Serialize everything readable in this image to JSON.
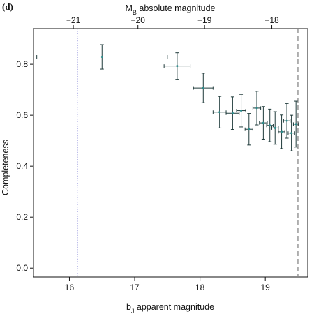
{
  "chart_data": {
    "type": "scatter",
    "panel_label": "(d)",
    "xlabel_base": "b",
    "xlabel_sub": "J",
    "xlabel_rest": " apparent magnitude",
    "ylabel": "Completeness",
    "top_label_base": "M",
    "top_label_sub": "B",
    "top_label_rest": " absolute magnitude",
    "xlim": [
      15.45,
      19.65
    ],
    "ylim": [
      -0.035,
      0.94
    ],
    "x_ticks": [
      16,
      17,
      18,
      19
    ],
    "x_tick_labels": [
      "16",
      "17",
      "18",
      "19"
    ],
    "y_ticks": [
      0.0,
      0.2,
      0.4,
      0.6,
      0.8
    ],
    "y_tick_labels": [
      "0.0",
      "0.2",
      "0.4",
      "0.6",
      "0.8"
    ],
    "top_ticks": [
      -21,
      -20,
      -19,
      -18
    ],
    "top_tick_labels": [
      "−21",
      "−20",
      "−19",
      "−18"
    ],
    "top_tick_positions_bj": [
      16.06,
      17.05,
      18.07,
      19.1
    ],
    "vlines": [
      {
        "x": 16.12,
        "style": "dotted",
        "color": "#3b3bbf"
      },
      {
        "x": 19.5,
        "style": "dashed",
        "color": "#888888"
      }
    ],
    "grid": false,
    "points": [
      {
        "x": 16.5,
        "y": 0.829,
        "xerr": 1.0,
        "yerr": 0.048
      },
      {
        "x": 17.65,
        "y": 0.793,
        "xerr": 0.2,
        "yerr": 0.052
      },
      {
        "x": 18.05,
        "y": 0.707,
        "xerr": 0.15,
        "yerr": 0.058
      },
      {
        "x": 18.3,
        "y": 0.612,
        "xerr": 0.1,
        "yerr": 0.062
      },
      {
        "x": 18.5,
        "y": 0.608,
        "xerr": 0.1,
        "yerr": 0.064
      },
      {
        "x": 18.63,
        "y": 0.618,
        "xerr": 0.07,
        "yerr": 0.064
      },
      {
        "x": 18.75,
        "y": 0.545,
        "xerr": 0.06,
        "yerr": 0.062
      },
      {
        "x": 18.87,
        "y": 0.628,
        "xerr": 0.06,
        "yerr": 0.066
      },
      {
        "x": 18.97,
        "y": 0.57,
        "xerr": 0.06,
        "yerr": 0.064
      },
      {
        "x": 19.07,
        "y": 0.56,
        "xerr": 0.05,
        "yerr": 0.064
      },
      {
        "x": 19.15,
        "y": 0.55,
        "xerr": 0.05,
        "yerr": 0.064
      },
      {
        "x": 19.25,
        "y": 0.535,
        "xerr": 0.05,
        "yerr": 0.066
      },
      {
        "x": 19.33,
        "y": 0.578,
        "xerr": 0.05,
        "yerr": 0.068
      },
      {
        "x": 19.4,
        "y": 0.53,
        "xerr": 0.05,
        "yerr": 0.07
      },
      {
        "x": 19.47,
        "y": 0.565,
        "xerr": 0.04,
        "yerr": 0.09
      }
    ],
    "colors": {
      "errorbar": "#1f3a3a",
      "marker": "#2a8a8a",
      "axis": "#111111"
    }
  }
}
